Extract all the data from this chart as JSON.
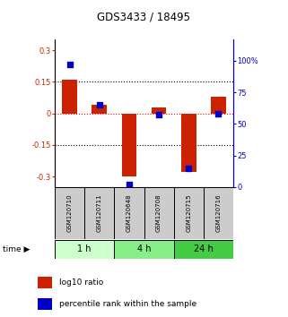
{
  "title": "GDS3433 / 18495",
  "samples": [
    "GSM120710",
    "GSM120711",
    "GSM120648",
    "GSM120708",
    "GSM120715",
    "GSM120716"
  ],
  "log10_ratio": [
    0.16,
    0.04,
    -0.3,
    0.03,
    -0.28,
    0.08
  ],
  "percentile_rank": [
    97,
    65,
    2,
    57,
    15,
    58
  ],
  "time_groups": [
    {
      "label": "1 h",
      "samples": [
        0,
        1
      ],
      "color": "#ccffcc"
    },
    {
      "label": "4 h",
      "samples": [
        2,
        3
      ],
      "color": "#88ee88"
    },
    {
      "label": "24 h",
      "samples": [
        4,
        5
      ],
      "color": "#44cc44"
    }
  ],
  "bar_color": "#cc2200",
  "dot_color": "#0000cc",
  "ylim_left": [
    -0.35,
    0.35
  ],
  "ylim_right": [
    0,
    116.67
  ],
  "yticks_left": [
    -0.3,
    -0.15,
    0.0,
    0.15,
    0.3
  ],
  "yticks_right": [
    0,
    25,
    50,
    75,
    100
  ],
  "ytick_labels_left": [
    "-0.3",
    "-0.15",
    "0",
    "0.15",
    "0.3"
  ],
  "ytick_labels_right": [
    "0",
    "25",
    "50",
    "75",
    "100%"
  ],
  "hline_y": [
    0.15,
    -0.15
  ],
  "bar_width": 0.5,
  "dot_size": 18,
  "legend_items": [
    {
      "label": "log10 ratio",
      "color": "#cc2200"
    },
    {
      "label": "percentile rank within the sample",
      "color": "#0000cc"
    }
  ],
  "bg_color": "#ffffff",
  "gray_bg": "#cccccc"
}
